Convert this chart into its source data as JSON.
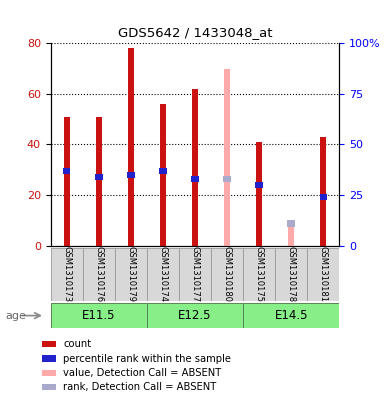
{
  "title": "GDS5642 / 1433048_at",
  "samples": [
    "GSM1310173",
    "GSM1310176",
    "GSM1310179",
    "GSM1310174",
    "GSM1310177",
    "GSM1310180",
    "GSM1310175",
    "GSM1310178",
    "GSM1310181"
  ],
  "count_values": [
    51,
    51,
    78,
    56,
    62,
    null,
    41,
    null,
    43
  ],
  "rank_values": [
    37,
    34,
    35,
    37,
    33,
    null,
    30,
    null,
    24
  ],
  "absent_count": [
    null,
    null,
    null,
    null,
    null,
    70,
    null,
    8,
    null
  ],
  "absent_rank": [
    null,
    null,
    null,
    null,
    null,
    33,
    null,
    11,
    null
  ],
  "age_groups": [
    {
      "label": "E11.5",
      "start": 0,
      "end": 3
    },
    {
      "label": "E12.5",
      "start": 3,
      "end": 6
    },
    {
      "label": "E14.5",
      "start": 6,
      "end": 9
    }
  ],
  "ylim_left": [
    0,
    80
  ],
  "ylim_right": [
    0,
    100
  ],
  "yticks_left": [
    0,
    20,
    40,
    60,
    80
  ],
  "yticks_right": [
    0,
    25,
    50,
    75,
    100
  ],
  "color_count": "#cc1111",
  "color_rank": "#2222cc",
  "color_absent_count": "#ffaaaa",
  "color_absent_rank": "#aaaacc",
  "grid_color": "black",
  "bg_color": "#d8d8d8",
  "age_color": "#88ee88",
  "age_color_dark": "#44dd44"
}
